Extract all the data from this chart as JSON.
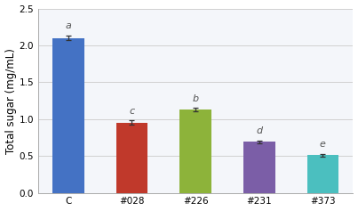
{
  "categories": [
    "C",
    "#028",
    "#226",
    "#231",
    "#373"
  ],
  "values": [
    2.1,
    0.95,
    1.13,
    0.69,
    0.51
  ],
  "errors": [
    0.03,
    0.03,
    0.02,
    0.02,
    0.02
  ],
  "bar_colors": [
    "#4472C4",
    "#C0392B",
    "#8DB33A",
    "#7B5EA7",
    "#4BBFBF"
  ],
  "letters": [
    "a",
    "c",
    "b",
    "d",
    "e"
  ],
  "ylabel": "Total sugar (mg/mL)",
  "ylim": [
    0,
    2.5
  ],
  "yticks": [
    0,
    0.5,
    1.0,
    1.5,
    2.0,
    2.5
  ],
  "grid_color": "#d0d0d0",
  "background_color": "#ffffff",
  "plot_bg_color": "#f4f6fa",
  "bar_width": 0.5,
  "letter_fontsize": 8,
  "tick_fontsize": 7.5,
  "label_fontsize": 8.5,
  "spine_color": "#aaaaaa"
}
